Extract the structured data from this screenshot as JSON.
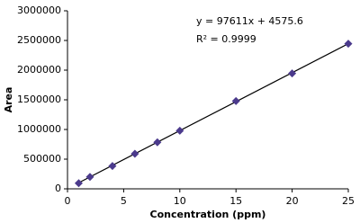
{
  "chart_data": {
    "type": "scatter",
    "x_label": "Concentration (ppm)",
    "y_label": "Area",
    "series": [
      {
        "name": "Area",
        "color": "#4b3a8c",
        "x": [
          1,
          2,
          4,
          6,
          8,
          10,
          15,
          20,
          25
        ],
        "values": [
          95000,
          200000,
          385000,
          590000,
          785000,
          980000,
          1480000,
          1945000,
          2445000
        ]
      }
    ],
    "trendline": {
      "slope": 97611,
      "intercept": 4575.6,
      "color": "#000000",
      "equation_label": "y = 97611x + 4575.6",
      "r2_label": "R² = 0.9999"
    },
    "xlim": [
      0,
      25
    ],
    "xticks": [
      0,
      5,
      10,
      15,
      20,
      25
    ],
    "ylim": [
      0,
      3000000
    ],
    "yticks": [
      0,
      500000,
      1000000,
      1500000,
      2000000,
      2500000,
      3000000
    ],
    "grid": false
  }
}
